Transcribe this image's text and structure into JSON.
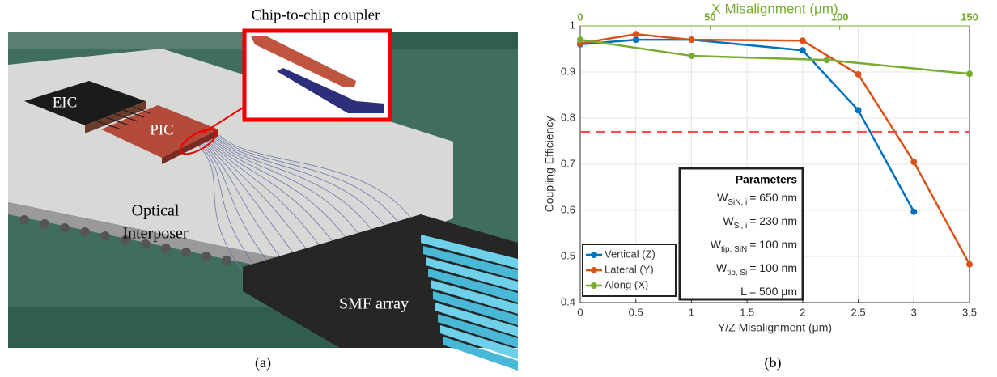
{
  "figure": {
    "panel_a": {
      "caption": "(a)",
      "inset_label": "Chip-to-chip coupler",
      "eic": "EIC",
      "pic": "PIC",
      "interposer": [
        "Optical",
        "Interposer"
      ],
      "smf": "SMF array"
    },
    "panel_b": {
      "caption": "(b)"
    }
  },
  "chart_data": {
    "type": "line",
    "xlabel": "Y/Z Misalignment (μm)",
    "x2label": "X Misalignment (μm)",
    "ylabel": "Coupling Efficiency",
    "xlim": [
      0,
      3.5
    ],
    "xticks": [
      0,
      0.5,
      1,
      1.5,
      2,
      2.5,
      3,
      3.5
    ],
    "x2lim": [
      0,
      150
    ],
    "x2ticks": [
      0,
      50,
      100,
      150
    ],
    "x2color": "#77ac30",
    "ylim": [
      0.4,
      1
    ],
    "yticks": [
      0.4,
      0.5,
      0.6,
      0.7,
      0.8,
      0.9,
      1
    ],
    "grid": true,
    "legend": "lower left",
    "reference_line": {
      "value": 0.77,
      "color": "#ff4d4d"
    },
    "series": [
      {
        "name": "Vertical (Z)",
        "color": "#0072bd",
        "x": [
          0,
          0.5,
          1,
          2,
          2.5,
          3
        ],
        "values": [
          0.96,
          0.97,
          0.97,
          0.947,
          0.817,
          0.597
        ]
      },
      {
        "name": "Lateral (Y)",
        "color": "#d95319",
        "x": [
          0,
          0.5,
          1,
          2,
          2.5,
          3,
          3.5
        ],
        "values": [
          0.962,
          0.982,
          0.97,
          0.968,
          0.895,
          0.705,
          0.483
        ]
      },
      {
        "name": "Along (X)",
        "color": "#77ac30",
        "axis": "x2",
        "x": [
          0,
          43,
          95,
          150
        ],
        "values": [
          0.97,
          0.935,
          0.926,
          0.896
        ]
      }
    ],
    "parameters": {
      "title": "Parameters",
      "items": [
        {
          "main": "W",
          "sub": "SiN, i",
          "rest": "= 650 nm"
        },
        {
          "main": "W",
          "sub": "Si, i",
          "rest": "= 230 nm"
        },
        {
          "main": "W",
          "sub": "tip, SiN",
          "rest": "= 100 nm"
        },
        {
          "main": "W",
          "sub": "tip, Si",
          "rest": "= 100 nm"
        },
        {
          "main": "L",
          "rest": "= 500 μm"
        }
      ]
    }
  }
}
